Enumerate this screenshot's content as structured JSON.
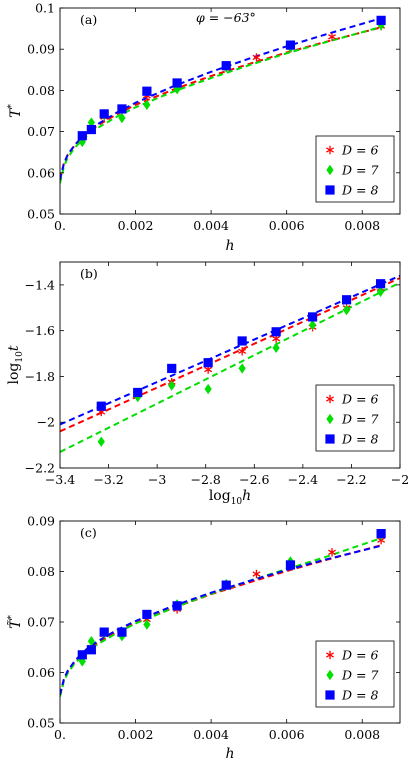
{
  "colors": {
    "D6": "#ff0000",
    "D7": "#00e000",
    "D8": "#0000ff"
  },
  "chart_data": [
    {
      "type": "scatter",
      "panel_label": "(a)",
      "annotation": "φ = −63°",
      "xlabel": "h",
      "ylabel": "T*",
      "xlim": [
        0,
        0.009
      ],
      "ylim": [
        0.05,
        0.1
      ],
      "xticks": [
        0,
        0.002,
        0.004,
        0.006,
        0.008
      ],
      "xtick_labels": [
        "0.",
        "0.002",
        "0.004",
        "0.006",
        "0.008"
      ],
      "yticks": [
        0.05,
        0.06,
        0.07,
        0.08,
        0.09,
        0.1
      ],
      "ytick_labels": [
        "0.05",
        "0.06",
        "0.07",
        "0.08",
        "0.09",
        "0.1"
      ],
      "legend_position": "lower-right",
      "series": [
        {
          "name": "D = 6",
          "marker": "star",
          "color": "#ff0000",
          "x": [
            0.00059,
            0.00083,
            0.00117,
            0.00164,
            0.0023,
            0.0031,
            0.0044,
            0.0052,
            0.0061,
            0.0072,
            0.0085
          ],
          "y": [
            0.0685,
            0.0705,
            0.0735,
            0.0752,
            0.0787,
            0.0812,
            0.0855,
            0.088,
            0.0905,
            0.093,
            0.0956
          ],
          "fit": {
            "x": [
              0,
              0.0001,
              0.0002,
              0.0004,
              0.0007,
              0.001,
              0.0015,
              0.002,
              0.003,
              0.004,
              0.005,
              0.006,
              0.007,
              0.0085
            ],
            "y": [
              0.0585,
              0.0622,
              0.0643,
              0.0668,
              0.0695,
              0.0715,
              0.0742,
              0.0765,
              0.0802,
              0.0835,
              0.0864,
              0.0892,
              0.0917,
              0.0953
            ]
          }
        },
        {
          "name": "D = 7",
          "marker": "diamond",
          "color": "#00e000",
          "x": [
            0.00059,
            0.00083,
            0.00117,
            0.00164,
            0.0023,
            0.0031,
            0.0044,
            0.0061,
            0.0085
          ],
          "y": [
            0.0675,
            0.0722,
            0.074,
            0.0733,
            0.0765,
            0.0803,
            0.0856,
            0.0904,
            0.0958
          ],
          "fit": {
            "x": [
              0,
              0.0001,
              0.0002,
              0.0004,
              0.0007,
              0.001,
              0.0015,
              0.002,
              0.003,
              0.004,
              0.005,
              0.006,
              0.007,
              0.0085
            ],
            "y": [
              0.0575,
              0.0614,
              0.0636,
              0.0662,
              0.0689,
              0.0709,
              0.0736,
              0.0759,
              0.0797,
              0.083,
              0.0861,
              0.089,
              0.0916,
              0.0954
            ]
          }
        },
        {
          "name": "D = 8",
          "marker": "square",
          "color": "#0000ff",
          "x": [
            0.00059,
            0.00083,
            0.00117,
            0.00164,
            0.0023,
            0.0031,
            0.0044,
            0.0061,
            0.0085
          ],
          "y": [
            0.069,
            0.0705,
            0.0743,
            0.0755,
            0.0798,
            0.0818,
            0.086,
            0.091,
            0.097
          ],
          "fit": {
            "x": [
              0,
              0.0001,
              0.0002,
              0.0004,
              0.0007,
              0.001,
              0.0015,
              0.002,
              0.003,
              0.004,
              0.005,
              0.006,
              0.007,
              0.0085
            ],
            "y": [
              0.0583,
              0.0621,
              0.0643,
              0.0669,
              0.0697,
              0.0718,
              0.0746,
              0.077,
              0.081,
              0.0845,
              0.0877,
              0.0907,
              0.0935,
              0.0975
            ]
          }
        }
      ]
    },
    {
      "type": "scatter",
      "panel_label": "(b)",
      "xlabel": "log10 h",
      "ylabel": "log10 t",
      "xlim": [
        -3.4,
        -2.0
      ],
      "ylim": [
        -2.2,
        -1.3
      ],
      "xticks": [
        -3.4,
        -3.2,
        -3.0,
        -2.8,
        -2.6,
        -2.4,
        -2.2,
        -2.0
      ],
      "xtick_labels": [
        "−3.4",
        "−3.2",
        "−3",
        "−2.8",
        "−2.6",
        "−2.4",
        "−2.2",
        "−2"
      ],
      "yticks": [
        -2.2,
        -2.0,
        -1.8,
        -1.6,
        -1.4
      ],
      "ytick_labels": [
        "−2.2",
        "−2",
        "−1.8",
        "−1.6",
        "−1.4"
      ],
      "legend_position": "lower-right",
      "series": [
        {
          "name": "D = 6",
          "marker": "star",
          "color": "#ff0000",
          "x": [
            -3.23,
            -3.08,
            -2.94,
            -2.79,
            -2.65,
            -2.51,
            -2.36,
            -2.22,
            -2.08
          ],
          "y": [
            -1.955,
            -1.875,
            -1.825,
            -1.77,
            -1.69,
            -1.635,
            -1.585,
            -1.5,
            -1.415
          ],
          "fit": {
            "x": [
              -3.4,
              -2.0
            ],
            "y": [
              -2.04,
              -1.37
            ]
          }
        },
        {
          "name": "D = 7",
          "marker": "diamond",
          "color": "#00e000",
          "x": [
            -3.23,
            -3.08,
            -2.94,
            -2.79,
            -2.65,
            -2.51,
            -2.36,
            -2.22,
            -2.08
          ],
          "y": [
            -2.085,
            -1.89,
            -1.84,
            -1.855,
            -1.765,
            -1.675,
            -1.575,
            -1.51,
            -1.43
          ],
          "fit": {
            "x": [
              -3.4,
              -2.0
            ],
            "y": [
              -2.13,
              -1.39
            ]
          }
        },
        {
          "name": "D = 8",
          "marker": "square",
          "color": "#0000ff",
          "x": [
            -3.23,
            -3.08,
            -2.94,
            -2.79,
            -2.65,
            -2.51,
            -2.36,
            -2.22,
            -2.08
          ],
          "y": [
            -1.93,
            -1.87,
            -1.765,
            -1.74,
            -1.645,
            -1.605,
            -1.54,
            -1.465,
            -1.395
          ],
          "fit": {
            "x": [
              -3.4,
              -2.0
            ],
            "y": [
              -2.01,
              -1.36
            ]
          }
        }
      ]
    },
    {
      "type": "scatter",
      "panel_label": "(c)",
      "xlabel": "h",
      "ylabel": "T̃*",
      "xlim": [
        0,
        0.009
      ],
      "ylim": [
        0.05,
        0.09
      ],
      "xticks": [
        0,
        0.002,
        0.004,
        0.006,
        0.008
      ],
      "xtick_labels": [
        "0.",
        "0.002",
        "0.004",
        "0.006",
        "0.008"
      ],
      "yticks": [
        0.05,
        0.06,
        0.07,
        0.08,
        0.09
      ],
      "ytick_labels": [
        "0.05",
        "0.06",
        "0.07",
        "0.08",
        "0.09"
      ],
      "legend_position": "lower-right",
      "series": [
        {
          "name": "D = 6",
          "marker": "star",
          "color": "#ff0000",
          "x": [
            0.00059,
            0.00083,
            0.00117,
            0.00164,
            0.0023,
            0.0031,
            0.0044,
            0.0052,
            0.0061,
            0.0072,
            0.0085
          ],
          "y": [
            0.0632,
            0.065,
            0.0675,
            0.068,
            0.0705,
            0.0725,
            0.0775,
            0.0795,
            0.0815,
            0.0838,
            0.0862
          ],
          "fit": {
            "x": [
              0,
              0.0001,
              0.0002,
              0.0004,
              0.0007,
              0.001,
              0.0015,
              0.002,
              0.003,
              0.004,
              0.005,
              0.006,
              0.007,
              0.0085
            ],
            "y": [
              0.0555,
              0.0585,
              0.0601,
              0.0622,
              0.0643,
              0.0658,
              0.068,
              0.0698,
              0.0728,
              0.0755,
              0.0778,
              0.0801,
              0.0822,
              0.0852
            ]
          }
        },
        {
          "name": "D = 7",
          "marker": "diamond",
          "color": "#00e000",
          "x": [
            0.00059,
            0.00083,
            0.00117,
            0.00164,
            0.0023,
            0.0031,
            0.0044,
            0.0061,
            0.0085
          ],
          "y": [
            0.0622,
            0.0662,
            0.0678,
            0.0672,
            0.0695,
            0.0735,
            0.0775,
            0.082,
            0.0872
          ],
          "fit": {
            "x": [
              0,
              0.0001,
              0.0002,
              0.0004,
              0.0007,
              0.001,
              0.0015,
              0.002,
              0.003,
              0.004,
              0.005,
              0.006,
              0.007,
              0.0085
            ],
            "y": [
              0.0552,
              0.0582,
              0.0598,
              0.0619,
              0.064,
              0.0656,
              0.0678,
              0.0697,
              0.0728,
              0.0756,
              0.0781,
              0.0805,
              0.0828,
              0.0866
            ]
          }
        },
        {
          "name": "D = 8",
          "marker": "square",
          "color": "#0000ff",
          "x": [
            0.00059,
            0.00083,
            0.00117,
            0.00164,
            0.0023,
            0.0031,
            0.0044,
            0.0061,
            0.0085
          ],
          "y": [
            0.0635,
            0.0645,
            0.068,
            0.068,
            0.0715,
            0.0732,
            0.0773,
            0.0813,
            0.0875
          ],
          "fit": {
            "x": [
              0,
              0.0001,
              0.0002,
              0.0004,
              0.0007,
              0.001,
              0.0015,
              0.002,
              0.003,
              0.004,
              0.005,
              0.006,
              0.007,
              0.0085
            ],
            "y": [
              0.0556,
              0.0586,
              0.0603,
              0.0624,
              0.0646,
              0.0662,
              0.0684,
              0.0702,
              0.0732,
              0.0758,
              0.0781,
              0.0803,
              0.0823,
              0.0851
            ]
          }
        }
      ]
    }
  ]
}
